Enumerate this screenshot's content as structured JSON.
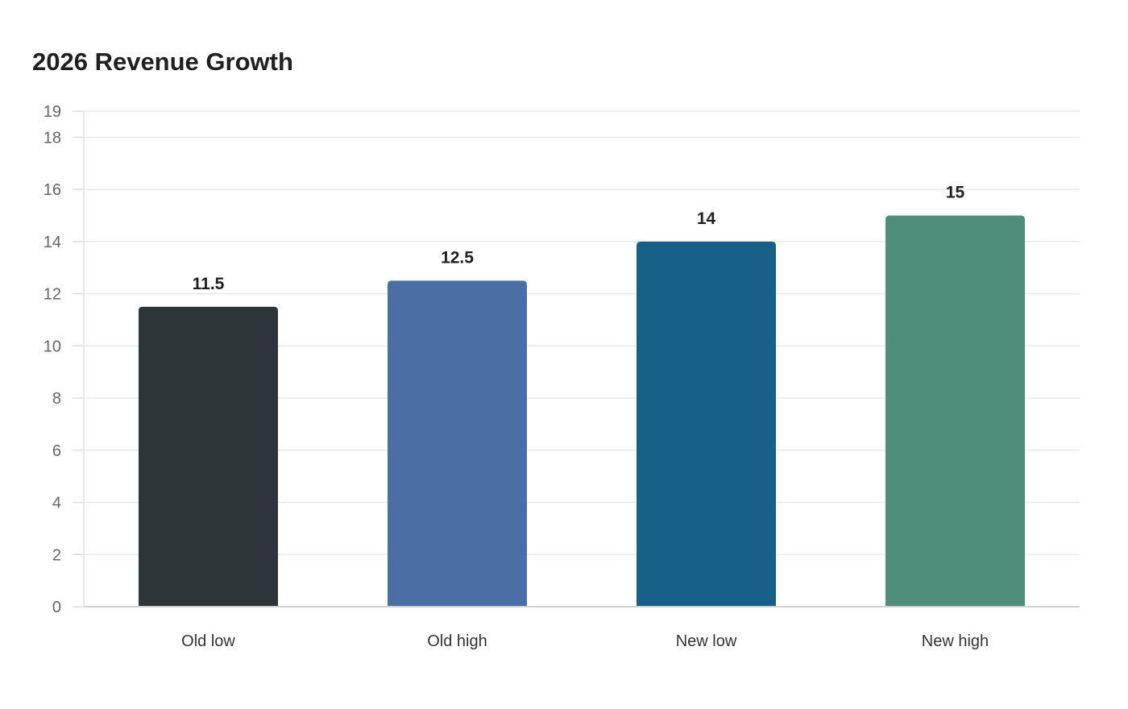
{
  "chart_data": {
    "type": "bar",
    "title": "2026 Revenue Growth",
    "xlabel": "",
    "ylabel": "",
    "categories": [
      "Old low",
      "Old high",
      "New low",
      "New high"
    ],
    "values": [
      11.5,
      12.5,
      14,
      15
    ],
    "colors": [
      "#2d3538",
      "#4a6fa5",
      "#176087",
      "#4e8e7b"
    ],
    "yticks": [
      0,
      2,
      4,
      6,
      8,
      10,
      12,
      14,
      16,
      18,
      19
    ],
    "ylim": [
      0,
      19
    ],
    "grid": true,
    "legend": "none"
  }
}
